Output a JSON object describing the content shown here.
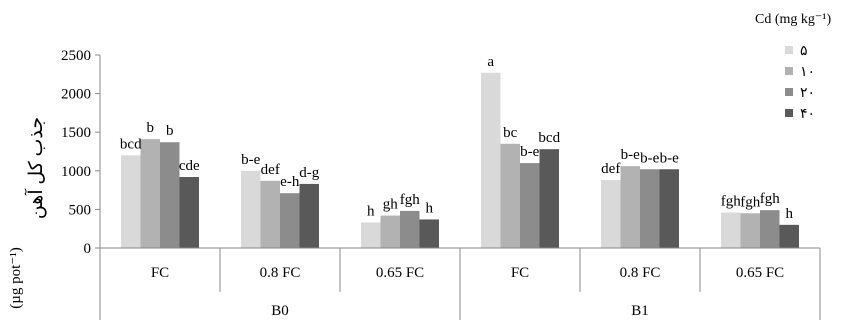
{
  "chart_data": {
    "type": "bar",
    "ylabel_fa": "جذب کل آهن",
    "ylabel_unit": "(µg pot⁻¹)",
    "ylim": [
      0,
      2500
    ],
    "yticks": [
      "0",
      "500",
      "1000",
      "1500",
      "2000",
      "2500"
    ],
    "groups": [
      {
        "name": "B0",
        "categories": [
          "FC",
          "0.8 FC",
          "0.65 FC"
        ]
      },
      {
        "name": "B1",
        "categories": [
          "FC",
          "0.8 FC",
          "0.65 FC"
        ]
      }
    ],
    "legend_title": "Cd (mg kg⁻¹)",
    "legend_position": "top-right",
    "series": [
      {
        "name": "۵",
        "color": "#d9d9d9",
        "values": [
          1200,
          1000,
          330,
          2270,
          880,
          460
        ]
      },
      {
        "name": "۱۰",
        "color": "#b2b2b2",
        "values": [
          1410,
          870,
          420,
          1350,
          1060,
          450
        ]
      },
      {
        "name": "۲۰",
        "color": "#8c8c8c",
        "values": [
          1370,
          710,
          480,
          1100,
          1020,
          490
        ]
      },
      {
        "name": "۴۰",
        "color": "#595959",
        "values": [
          920,
          830,
          370,
          1280,
          1020,
          300
        ]
      }
    ],
    "letters": [
      [
        "bcd",
        "b-e",
        "h",
        "a",
        "def",
        "fgh"
      ],
      [
        "b",
        "def",
        "gh",
        "bc",
        "b-e",
        "fgh"
      ],
      [
        "b",
        "e-h",
        "fgh",
        "b-e",
        "b-e",
        "fgh"
      ],
      [
        "cde",
        "d-g",
        "h",
        "bcd",
        "b-e",
        "h"
      ]
    ]
  }
}
